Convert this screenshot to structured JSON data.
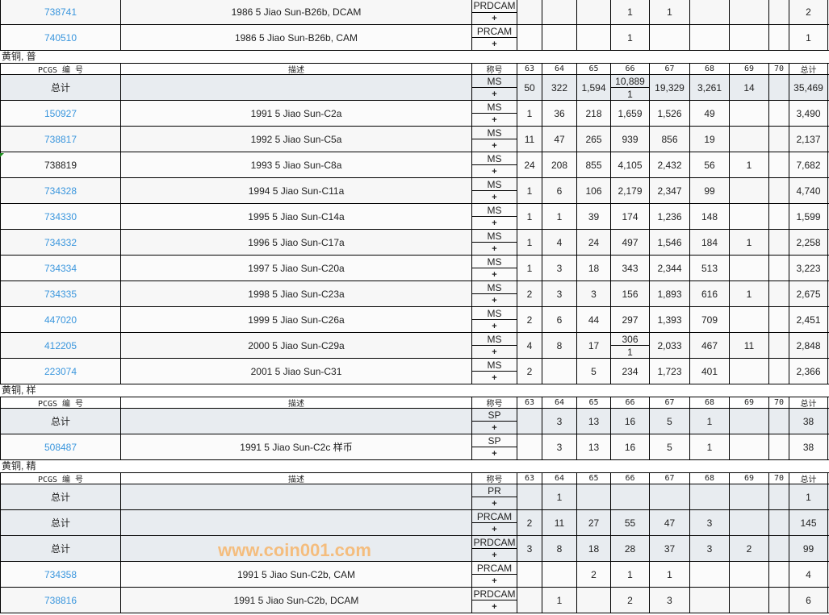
{
  "headers": {
    "pcgs": "PCGS 编 号",
    "desc": "描述",
    "designation": "称号",
    "grades": [
      "63",
      "64",
      "65",
      "66",
      "67",
      "68",
      "69",
      "70"
    ],
    "total": "总计"
  },
  "total_label": "总计",
  "plus": "+",
  "sections": [
    {
      "label": "",
      "show_header": false,
      "rows": [
        {
          "pcgs": "738741",
          "link": true,
          "desc": "1986 5 Jiao Sun-B26b, DCAM",
          "des": "PRDCAM",
          "grades": [
            "",
            "",
            "",
            "1",
            "1",
            "",
            "",
            ""
          ],
          "total": "2"
        },
        {
          "pcgs": "740510",
          "link": true,
          "desc": "1986 5 Jiao Sun-B26b, CAM",
          "des": "PRCAM",
          "grades": [
            "",
            "",
            "",
            "1",
            "",
            "",
            "",
            ""
          ],
          "total": "1"
        }
      ]
    },
    {
      "label": "黄铜, 普",
      "show_header": true,
      "rows": [
        {
          "is_total": true,
          "desc": "",
          "des": "MS",
          "grades": [
            "50",
            "322",
            "1,594",
            [
              "10,889",
              "1"
            ],
            "19,329",
            "3,261",
            "14",
            ""
          ],
          "total": "35,469"
        },
        {
          "pcgs": "150927",
          "link": true,
          "desc": "1991 5 Jiao Sun-C2a",
          "des": "MS",
          "grades": [
            "1",
            "36",
            "218",
            "1,659",
            "1,526",
            "49",
            "",
            ""
          ],
          "total": "3,490"
        },
        {
          "pcgs": "738817",
          "link": true,
          "desc": "1992 5 Jiao Sun-C5a",
          "des": "MS",
          "grades": [
            "11",
            "47",
            "265",
            "939",
            "856",
            "19",
            "",
            ""
          ],
          "total": "2,137"
        },
        {
          "pcgs": "738819",
          "link": false,
          "desc": "1993 5 Jiao Sun-C8a",
          "des": "MS",
          "grades": [
            "24",
            "208",
            "855",
            "4,105",
            "2,432",
            "56",
            "1",
            ""
          ],
          "total": "7,682"
        },
        {
          "pcgs": "734328",
          "link": true,
          "desc": "1994 5 Jiao Sun-C11a",
          "des": "MS",
          "grades": [
            "1",
            "6",
            "106",
            "2,179",
            "2,347",
            "99",
            "",
            ""
          ],
          "total": "4,740"
        },
        {
          "pcgs": "734330",
          "link": true,
          "desc": "1995 5 Jiao Sun-C14a",
          "des": "MS",
          "grades": [
            "1",
            "1",
            "39",
            "174",
            "1,236",
            "148",
            "",
            ""
          ],
          "total": "1,599"
        },
        {
          "pcgs": "734332",
          "link": true,
          "desc": "1996 5 Jiao Sun-C17a",
          "des": "MS",
          "grades": [
            "1",
            "4",
            "24",
            "497",
            "1,546",
            "184",
            "1",
            ""
          ],
          "total": "2,258"
        },
        {
          "pcgs": "734334",
          "link": true,
          "desc": "1997 5 Jiao Sun-C20a",
          "des": "MS",
          "grades": [
            "1",
            "3",
            "18",
            "343",
            "2,344",
            "513",
            "",
            ""
          ],
          "total": "3,223"
        },
        {
          "pcgs": "734335",
          "link": true,
          "desc": "1998 5 Jiao Sun-C23a",
          "des": "MS",
          "grades": [
            "2",
            "3",
            "3",
            "156",
            "1,893",
            "616",
            "1",
            ""
          ],
          "total": "2,675"
        },
        {
          "pcgs": "447020",
          "link": true,
          "desc": "1999 5 Jiao Sun-C26a",
          "des": "MS",
          "grades": [
            "2",
            "6",
            "44",
            "297",
            "1,393",
            "709",
            "",
            ""
          ],
          "total": "2,451"
        },
        {
          "pcgs": "412205",
          "link": true,
          "desc": "2000 5 Jiao Sun-C29a",
          "des": "MS",
          "grades": [
            "4",
            "8",
            "17",
            [
              "306",
              "1"
            ],
            "2,033",
            "467",
            "11",
            ""
          ],
          "total": "2,848"
        },
        {
          "pcgs": "223074",
          "link": true,
          "desc": "2001 5 Jiao Sun-C31",
          "des": "MS",
          "grades": [
            "2",
            "",
            "5",
            "234",
            "1,723",
            "401",
            "",
            ""
          ],
          "total": "2,366"
        }
      ]
    },
    {
      "label": "黄铜, 样",
      "show_header": true,
      "rows": [
        {
          "is_total": true,
          "desc": "",
          "des": "SP",
          "grades": [
            "",
            "3",
            "13",
            "16",
            "5",
            "1",
            "",
            ""
          ],
          "total": "38"
        },
        {
          "pcgs": "508487",
          "link": true,
          "desc": "1991 5 Jiao Sun-C2c 样币",
          "des": "SP",
          "grades": [
            "",
            "3",
            "13",
            "16",
            "5",
            "1",
            "",
            ""
          ],
          "total": "38"
        }
      ]
    },
    {
      "label": "黄铜, 精",
      "show_header": true,
      "rows": [
        {
          "is_total": true,
          "desc": "",
          "des": "PR",
          "grades": [
            "",
            "1",
            "",
            "",
            "",
            "",
            "",
            ""
          ],
          "total": "1"
        },
        {
          "is_total": true,
          "desc": "",
          "des": "PRCAM",
          "grades": [
            "2",
            "11",
            "27",
            "55",
            "47",
            "3",
            "",
            ""
          ],
          "total": "145"
        },
        {
          "is_total": true,
          "desc": "",
          "des": "PRDCAM",
          "grades": [
            "3",
            "8",
            "18",
            "28",
            "37",
            "3",
            "2",
            ""
          ],
          "total": "99"
        },
        {
          "pcgs": "734358",
          "link": true,
          "desc": "1991 5 Jiao Sun-C2b, CAM",
          "des": "PRCAM",
          "grades": [
            "",
            "",
            "2",
            "1",
            "1",
            "",
            "",
            ""
          ],
          "total": "4"
        },
        {
          "pcgs": "738816",
          "link": true,
          "desc": "1991 5 Jiao Sun-C2b, DCAM",
          "des": "PRDCAM",
          "grades": [
            "",
            "1",
            "",
            "2",
            "3",
            "",
            "",
            ""
          ],
          "total": "6"
        }
      ]
    }
  ],
  "watermark": "www.coin001.com",
  "colors": {
    "link": "#3a96dd",
    "total_row": "#e8ecf0",
    "watermark": "#f7b56b"
  }
}
